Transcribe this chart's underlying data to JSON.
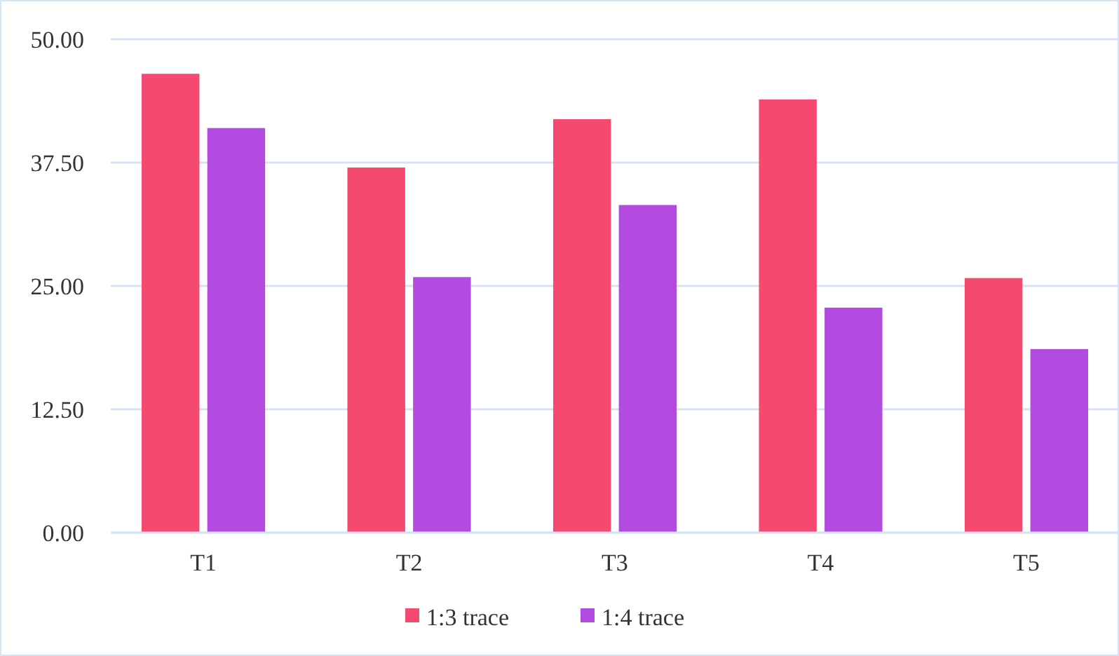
{
  "chart_data": {
    "type": "bar",
    "categories": [
      "T1",
      "T2",
      "T3",
      "T4",
      "T5"
    ],
    "series": [
      {
        "name": "1:3 trace",
        "color": "#f5496f",
        "values": [
          46.5,
          37.0,
          41.9,
          43.9,
          25.8
        ]
      },
      {
        "name": "1:4 trace",
        "color": "#b44be1",
        "values": [
          41.0,
          25.9,
          33.2,
          22.8,
          18.6
        ]
      }
    ],
    "ylim": [
      0,
      50
    ],
    "yticks": [
      {
        "value": 0,
        "label": "0.00"
      },
      {
        "value": 12.5,
        "label": "12.50"
      },
      {
        "value": 25,
        "label": "25.00"
      },
      {
        "value": 37.5,
        "label": "37.50"
      },
      {
        "value": 50,
        "label": "50.00"
      }
    ],
    "grid": "y",
    "legend": "bottom"
  }
}
